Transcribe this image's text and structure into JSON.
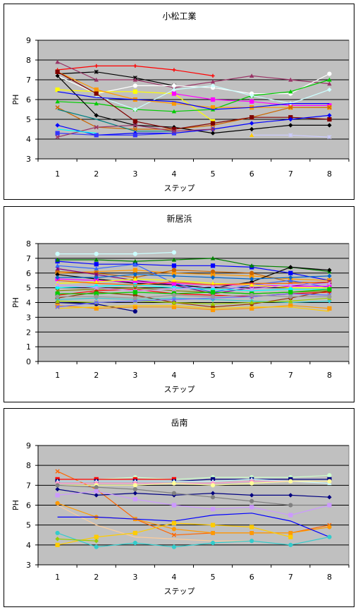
{
  "chart_data": [
    {
      "type": "line",
      "title": "小松工業",
      "xlabel": "ステップ",
      "ylabel": "PH",
      "categories": [
        "1",
        "2",
        "3",
        "4",
        "5",
        "6",
        "7",
        "8"
      ],
      "ylim": [
        3,
        9
      ],
      "yticks": [
        3,
        4,
        5,
        6,
        7,
        8,
        9
      ],
      "grid": true,
      "series": [
        {
          "color": "#ff0000",
          "marker": "plus",
          "values": [
            7.5,
            7.7,
            7.7,
            7.5,
            7.2,
            null,
            null,
            null
          ]
        },
        {
          "color": "#000000",
          "marker": "star",
          "values": [
            7.3,
            7.4,
            7.1,
            6.7,
            null,
            null,
            null,
            null
          ]
        },
        {
          "color": "#993366",
          "marker": "triangle",
          "values": [
            7.9,
            7.0,
            7.0,
            6.6,
            6.9,
            7.2,
            7.0,
            6.8
          ]
        },
        {
          "color": "#ffffff",
          "marker": "circle",
          "values": [
            7.2,
            6.3,
            6.7,
            6.7,
            6.6,
            6.3,
            6.3,
            7.3
          ]
        },
        {
          "color": "#ffff00",
          "marker": "square",
          "values": [
            6.5,
            6.4,
            6.4,
            6.3,
            4.9,
            null,
            null,
            null
          ]
        },
        {
          "color": "#ff00ff",
          "marker": "square",
          "values": [
            null,
            null,
            null,
            6.3,
            6.0,
            5.9,
            5.7,
            5.7
          ]
        },
        {
          "color": "#00cc00",
          "marker": "triangle",
          "values": [
            5.9,
            5.8,
            5.5,
            5.4,
            5.5,
            6.2,
            6.4,
            7.0
          ]
        },
        {
          "color": "#ccffff",
          "marker": "diamond",
          "values": [
            null,
            6.2,
            5.5,
            6.5,
            6.7,
            6.2,
            5.8,
            6.5
          ]
        },
        {
          "color": "#ff9900",
          "marker": "square",
          "values": [
            7.4,
            6.5,
            6.0,
            5.8,
            5.6,
            5.6,
            5.6,
            5.6
          ]
        },
        {
          "color": "#cc6600",
          "marker": "x",
          "values": [
            5.6,
            4.6,
            4.5,
            4.5,
            4.7,
            5.1,
            5.6,
            5.6
          ]
        },
        {
          "color": "#000000",
          "marker": "diamond",
          "values": [
            7.2,
            5.2,
            4.7,
            4.6,
            4.3,
            4.5,
            4.7,
            4.7
          ]
        },
        {
          "color": "#800000",
          "marker": "square",
          "values": [
            7.4,
            6.3,
            4.9,
            4.5,
            4.8,
            5.1,
            5.1,
            5.0
          ]
        },
        {
          "color": "#0000ff",
          "marker": "none",
          "values": [
            6.4,
            6.1,
            6.0,
            5.9,
            5.5,
            5.6,
            5.8,
            5.8
          ]
        },
        {
          "color": "#008080",
          "marker": "none",
          "values": [
            5.5,
            5.0,
            4.4,
            4.4,
            null,
            null,
            null,
            null
          ]
        },
        {
          "color": "#0000ff",
          "marker": "diamond",
          "values": [
            4.7,
            4.2,
            4.3,
            4.3,
            4.5,
            4.8,
            5.0,
            5.2
          ]
        },
        {
          "color": "#3333ff",
          "marker": "square",
          "values": [
            4.3,
            4.2,
            4.2,
            4.3,
            null,
            null,
            null,
            null
          ]
        },
        {
          "color": "#993366",
          "marker": "x",
          "values": [
            4.1,
            4.6,
            4.7,
            4.4,
            4.5,
            null,
            null,
            null
          ]
        },
        {
          "color": "#ccccff",
          "marker": "star",
          "values": [
            null,
            null,
            null,
            null,
            null,
            4.2,
            4.2,
            4.1
          ]
        },
        {
          "color": "#ffcc00",
          "marker": "triangle",
          "values": [
            null,
            null,
            null,
            null,
            null,
            4.2,
            null,
            null
          ]
        },
        {
          "color": "#00ffff",
          "marker": "none",
          "values": [
            4.5,
            4.3,
            null,
            null,
            null,
            null,
            null,
            null
          ]
        }
      ]
    },
    {
      "type": "line",
      "title": "新居浜",
      "xlabel": "ステップ",
      "ylabel": "PH",
      "categories": [
        "1",
        "2",
        "3",
        "4",
        "5",
        "6",
        "7",
        "8"
      ],
      "ylim": [
        0,
        8
      ],
      "yticks": [
        0,
        1,
        2,
        3,
        4,
        5,
        6,
        7,
        8
      ],
      "grid": true,
      "series": [
        {
          "color": "#ccffff",
          "marker": "circle",
          "values": [
            7.3,
            7.3,
            7.3,
            7.4,
            null,
            null,
            null,
            null
          ]
        },
        {
          "color": "#0000ff",
          "marker": "square",
          "values": [
            6.8,
            6.6,
            6.6,
            6.5,
            6.5,
            6.4,
            6.0,
            5.5
          ]
        },
        {
          "color": "#008000",
          "marker": "triangle",
          "values": [
            6.9,
            6.9,
            6.8,
            6.9,
            7.0,
            6.5,
            6.4,
            6.1
          ]
        },
        {
          "color": "#ff9900",
          "marker": "square",
          "values": [
            6.0,
            6.1,
            6.2,
            6.0,
            5.9,
            5.8,
            5.6,
            5.5
          ]
        },
        {
          "color": "#cc6600",
          "marker": "circle",
          "values": [
            6.1,
            6.0,
            5.7,
            6.2,
            6.1,
            6.0,
            5.4,
            5.3
          ]
        },
        {
          "color": "#000000",
          "marker": "diamond",
          "values": [
            5.9,
            5.6,
            5.3,
            5.2,
            5.0,
            5.4,
            6.4,
            6.2
          ]
        },
        {
          "color": "#800080",
          "marker": "star",
          "values": [
            6.3,
            5.9,
            5.5,
            5.2,
            4.6,
            5.0,
            5.1,
            5.4
          ]
        },
        {
          "color": "#3366ff",
          "marker": "triangle",
          "values": [
            6.5,
            6.3,
            6.6,
            5.3,
            4.7,
            5.2,
            5.5,
            5.0
          ]
        },
        {
          "color": "#ff00ff",
          "marker": "square",
          "values": [
            5.6,
            5.5,
            5.4,
            5.3,
            5.2,
            5.2,
            5.1,
            5.1
          ]
        },
        {
          "color": "#ffff00",
          "marker": "triangle",
          "values": [
            5.3,
            5.4,
            5.6,
            5.5,
            5.3,
            5.2,
            5.0,
            5.0
          ]
        },
        {
          "color": "#00ffff",
          "marker": "circle",
          "values": [
            5.0,
            5.1,
            5.2,
            5.0,
            4.9,
            4.8,
            4.9,
            4.9
          ]
        },
        {
          "color": "#808000",
          "marker": "x",
          "values": [
            4.8,
            4.9,
            5.0,
            4.8,
            4.7,
            4.6,
            4.7,
            4.8
          ]
        },
        {
          "color": "#ff0000",
          "marker": "plus",
          "values": [
            4.5,
            4.8,
            4.9,
            4.6,
            4.5,
            4.4,
            4.6,
            4.7
          ]
        },
        {
          "color": "#993300",
          "marker": "circle",
          "values": [
            4.3,
            4.7,
            4.5,
            4.0,
            3.7,
            3.9,
            4.3,
            4.8
          ]
        },
        {
          "color": "#000080",
          "marker": "circle",
          "values": [
            4.0,
            3.9,
            3.4,
            null,
            null,
            null,
            null,
            null
          ]
        },
        {
          "color": "#33cccc",
          "marker": "diamond",
          "values": [
            4.2,
            4.3,
            4.2,
            4.3,
            4.2,
            4.1,
            4.0,
            4.1
          ]
        },
        {
          "color": "#99cc00",
          "marker": "triangle",
          "values": [
            4.1,
            4.0,
            4.1,
            4.0,
            3.9,
            4.0,
            4.1,
            4.3
          ]
        },
        {
          "color": "#ff9900",
          "marker": "square",
          "values": [
            3.8,
            3.6,
            3.7,
            3.7,
            3.5,
            3.6,
            3.8,
            3.6
          ]
        },
        {
          "color": "#ffcc00",
          "marker": "none",
          "values": [
            3.6,
            3.7,
            3.8,
            3.8,
            3.6,
            3.7,
            3.7,
            3.4
          ]
        },
        {
          "color": "#6666ff",
          "marker": "x",
          "values": [
            3.7,
            4.0,
            4.1,
            4.2,
            4.3,
            4.4,
            4.6,
            4.5
          ]
        },
        {
          "color": "#cc99ff",
          "marker": "star",
          "values": [
            5.2,
            5.0,
            4.8,
            4.9,
            5.1,
            4.9,
            5.2,
            5.3
          ]
        },
        {
          "color": "#00cc00",
          "marker": "square",
          "values": [
            4.6,
            4.6,
            4.7,
            4.6,
            4.7,
            4.6,
            4.7,
            4.9
          ]
        },
        {
          "color": "#ff6600",
          "marker": "none",
          "values": [
            5.5,
            5.3,
            5.2,
            5.4,
            5.2,
            5.3,
            5.3,
            5.4
          ]
        },
        {
          "color": "#0066cc",
          "marker": "diamond",
          "values": [
            5.7,
            5.7,
            5.9,
            5.8,
            5.7,
            5.6,
            5.7,
            5.8
          ]
        },
        {
          "color": "#999999",
          "marker": "circle",
          "values": [
            4.4,
            4.4,
            4.3,
            4.5,
            4.4,
            4.5,
            4.4,
            4.4
          ]
        }
      ]
    },
    {
      "type": "line",
      "title": "岳南",
      "xlabel": "ステップ",
      "ylabel": "PH",
      "categories": [
        "1",
        "2",
        "3",
        "4",
        "5",
        "6",
        "7",
        "8"
      ],
      "ylim": [
        3,
        9
      ],
      "yticks": [
        3,
        4,
        5,
        6,
        7,
        8,
        9
      ],
      "grid": true,
      "series": [
        {
          "color": "#ff6600",
          "marker": "x",
          "values": [
            7.7,
            6.8,
            5.3,
            4.5,
            4.6,
            4.6,
            4.6,
            5.0
          ]
        },
        {
          "color": "#ccffcc",
          "marker": "circle",
          "values": [
            7.3,
            7.3,
            7.4,
            7.3,
            7.4,
            7.4,
            7.4,
            7.5
          ]
        },
        {
          "color": "#ff0000",
          "marker": "square",
          "values": [
            7.3,
            7.3,
            7.3,
            7.3,
            null,
            null,
            null,
            null
          ]
        },
        {
          "color": "#000080",
          "marker": "square",
          "values": [
            7.2,
            7.2,
            7.2,
            7.2,
            7.3,
            7.3,
            7.3,
            7.3
          ]
        },
        {
          "color": "#ccffff",
          "marker": "triangle",
          "values": [
            7.2,
            7.2,
            7.2,
            7.2,
            7.2,
            7.3,
            7.2,
            7.1
          ]
        },
        {
          "color": "#ff99cc",
          "marker": "circle",
          "values": [
            7.1,
            7.1,
            7.1,
            7.1,
            7.1,
            7.2,
            7.2,
            7.2
          ]
        },
        {
          "color": "#ffff99",
          "marker": "circle",
          "values": [
            7.0,
            7.0,
            7.0,
            7.1,
            7.0,
            7.1,
            7.2,
            7.2
          ]
        },
        {
          "color": "#000080",
          "marker": "diamond",
          "values": [
            6.8,
            6.5,
            6.6,
            6.5,
            6.6,
            6.5,
            6.5,
            6.4
          ]
        },
        {
          "color": "#808080",
          "marker": "circle",
          "values": [
            7.0,
            6.9,
            6.8,
            6.6,
            6.4,
            6.2,
            6.0,
            6.0
          ]
        },
        {
          "color": "#cc99ff",
          "marker": "square",
          "values": [
            6.5,
            6.7,
            6.3,
            6.0,
            5.8,
            5.9,
            5.5,
            6.0
          ]
        },
        {
          "color": "#ff9900",
          "marker": "circle",
          "values": [
            6.1,
            5.4,
            5.3,
            4.8,
            4.6,
            4.6,
            4.6,
            4.9
          ]
        },
        {
          "color": "#ffcc99",
          "marker": "none",
          "values": [
            6.0,
            5.0,
            4.4,
            4.3,
            4.2,
            4.2,
            null,
            null
          ]
        },
        {
          "color": "#0000ff",
          "marker": "none",
          "values": [
            5.4,
            5.4,
            5.3,
            5.2,
            5.5,
            5.6,
            5.2,
            4.4
          ]
        },
        {
          "color": "#ffcc00",
          "marker": "square",
          "values": [
            4.0,
            4.4,
            4.6,
            5.1,
            5.0,
            4.9,
            4.4,
            null
          ]
        },
        {
          "color": "#33cccc",
          "marker": "circle",
          "values": [
            4.6,
            3.9,
            4.1,
            3.9,
            4.1,
            4.2,
            4.0,
            4.4
          ]
        },
        {
          "color": "#99cc00",
          "marker": "diamond",
          "values": [
            4.3,
            4.2,
            null,
            null,
            null,
            null,
            null,
            null
          ]
        }
      ]
    }
  ]
}
